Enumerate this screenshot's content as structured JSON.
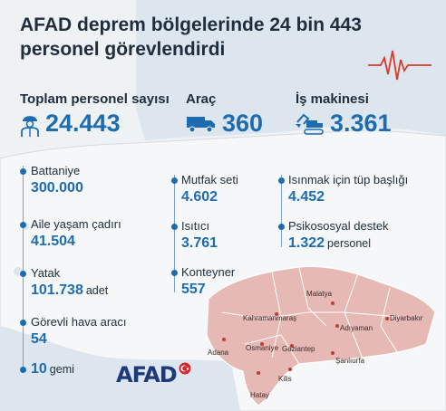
{
  "title_line1": "AFAD deprem bölgelerinde 24 bin 443",
  "title_line2": "personel görevlendirdi",
  "summary": [
    {
      "label": "Toplam personel sayısı",
      "value": "24.443",
      "icon": "worker-icon"
    },
    {
      "label": "Araç",
      "value": "360",
      "icon": "truck-icon"
    },
    {
      "label": "İş makinesi",
      "value": "3.361",
      "icon": "excavator-icon"
    }
  ],
  "col1": [
    {
      "label": "Battaniye",
      "value": "300.000",
      "unit": ""
    },
    {
      "label": "Aile yaşam çadırı",
      "value": "41.504",
      "unit": ""
    },
    {
      "label": "Yatak",
      "value": "101.738",
      "unit": "adet"
    },
    {
      "label": "Görevli hava aracı",
      "value": "54",
      "unit": ""
    },
    {
      "label": "",
      "value": "10",
      "unit": "gemi"
    }
  ],
  "col2": [
    {
      "label": "Mutfak seti",
      "value": "4.602"
    },
    {
      "label": "Isıtıcı",
      "value": "3.761"
    },
    {
      "label": "Konteyner",
      "value": "557"
    }
  ],
  "col3": [
    {
      "label": "Isınmak için tüp başlığı",
      "value": "4.452",
      "unit": ""
    },
    {
      "label": "Psikososyal destek",
      "value": "1.322",
      "unit": "personel"
    }
  ],
  "cities": [
    "Malatya",
    "Kahramanmaraş",
    "Adıyaman",
    "Diyarbakır",
    "Adana",
    "Osmaniye",
    "Gaziantep",
    "Şanlıurfa",
    "Kilis",
    "Hatay"
  ],
  "logo": "AFAD",
  "colors": {
    "accent": "#1e6cb0",
    "quake_region": "#e7b9b4",
    "text": "#1f2d3d"
  }
}
